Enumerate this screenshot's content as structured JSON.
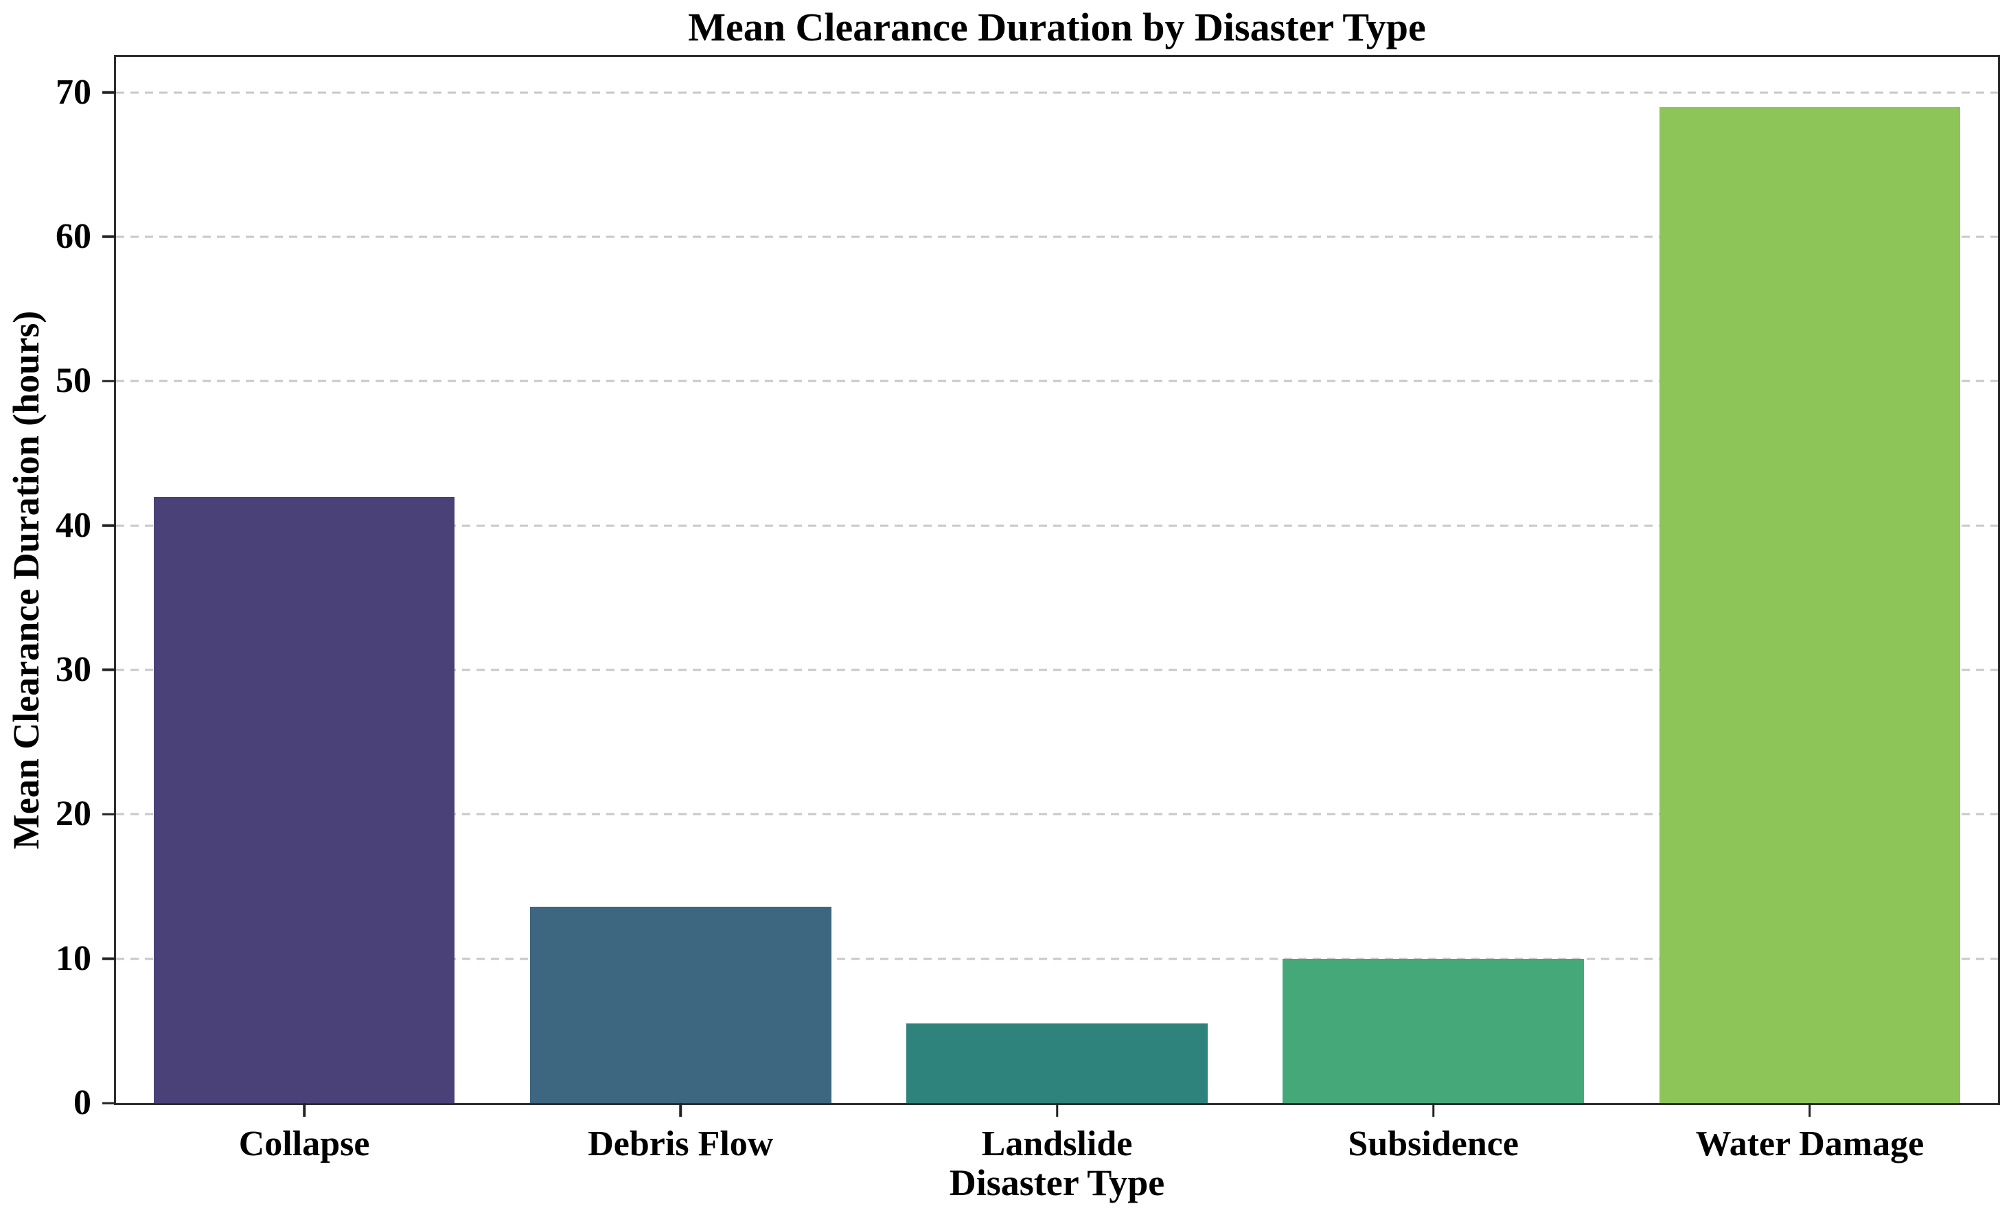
{
  "chart_data": {
    "type": "bar",
    "title": "Mean Clearance Duration by Disaster Type",
    "xlabel": "Disaster Type",
    "ylabel": "Mean Clearance Duration (hours)",
    "categories": [
      "Collapse",
      "Debris Flow",
      "Landslide",
      "Subsidence",
      "Water Damage"
    ],
    "values": [
      42,
      13.6,
      5.5,
      10,
      69
    ],
    "bar_colors": [
      "#4a4179",
      "#3d6681",
      "#2e837c",
      "#45a878",
      "#8dc559"
    ],
    "ylim": [
      0,
      72.45
    ],
    "yticks": [
      0,
      10,
      20,
      30,
      40,
      50,
      60,
      70
    ],
    "bar_width_fraction": 0.8,
    "grid": "horizontal-dashed",
    "gridline_color": "#c8c8c8",
    "spine_color": "#2e2e2e",
    "background": "#ffffff",
    "legend": "none"
  }
}
